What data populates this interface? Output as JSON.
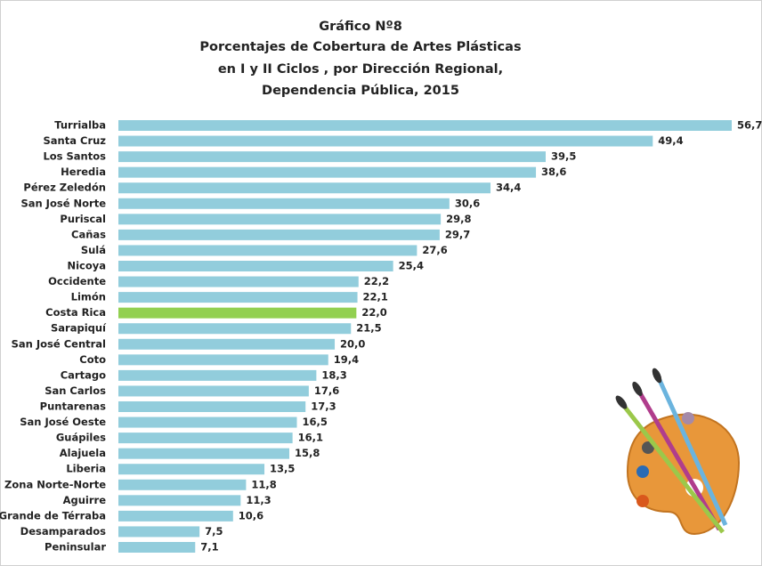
{
  "chart_data": {
    "type": "bar",
    "orientation": "horizontal",
    "title": [
      "Gráfico Nº8",
      "Porcentajes de Cobertura de Artes Plásticas",
      "en I y II Ciclos , por Dirección Regional,",
      "Dependencia Pública,  2015"
    ],
    "categories": [
      "Turrialba",
      "Santa Cruz",
      "Los Santos",
      "Heredia",
      "Pérez Zeledón",
      "San José Norte",
      "Puriscal",
      "Cañas",
      "Sulá",
      "Nicoya",
      "Occidente",
      "Limón",
      "Costa Rica",
      "Sarapiquí",
      "San José Central",
      "Coto",
      "Cartago",
      "San Carlos",
      "Puntarenas",
      "San José Oeste",
      "Guápiles",
      "Alajuela",
      "Liberia",
      "Zona Norte-Norte",
      "Aguirre",
      "Grande de Térraba",
      "Desamparados",
      "Peninsular"
    ],
    "values": [
      56.7,
      49.4,
      39.5,
      38.6,
      34.4,
      30.6,
      29.8,
      29.7,
      27.6,
      25.4,
      22.2,
      22.1,
      22.0,
      21.5,
      20.0,
      19.4,
      18.3,
      17.6,
      17.3,
      16.5,
      16.1,
      15.8,
      13.5,
      11.8,
      11.3,
      10.6,
      7.5,
      7.1
    ],
    "value_labels": [
      "56,7",
      "49,4",
      "39,5",
      "38,6",
      "34,4",
      "30,6",
      "29,8",
      "29,7",
      "27,6",
      "25,4",
      "22,2",
      "22,1",
      "22,0",
      "21,5",
      "20,0",
      "19,4",
      "18,3",
      "17,6",
      "17,3",
      "16,5",
      "16,1",
      "15,8",
      "13,5",
      "11,8",
      "11,3",
      "10,6",
      "7,5",
      "7,1"
    ],
    "colors": [
      "#92cddc",
      "#92cddc",
      "#92cddc",
      "#92cddc",
      "#92cddc",
      "#92cddc",
      "#92cddc",
      "#92cddc",
      "#92cddc",
      "#92cddc",
      "#92cddc",
      "#92cddc",
      "#92d050",
      "#92cddc",
      "#92cddc",
      "#92cddc",
      "#92cddc",
      "#92cddc",
      "#92cddc",
      "#92cddc",
      "#92cddc",
      "#92cddc",
      "#92cddc",
      "#92cddc",
      "#92cddc",
      "#92cddc",
      "#92cddc",
      "#92cddc"
    ]
  }
}
